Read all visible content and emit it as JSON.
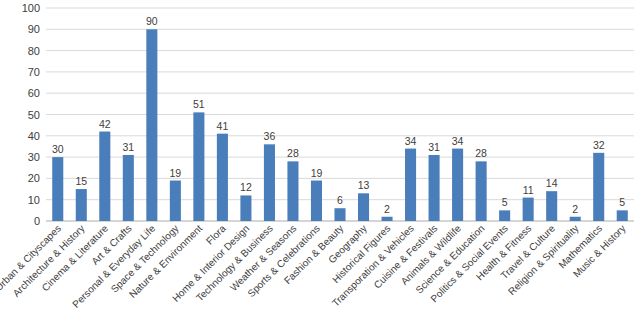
{
  "chart_data": {
    "type": "bar",
    "categories": [
      "Urban & Cityscapes",
      "Architecture & History",
      "Cinema & Literature",
      "Art & Crafts",
      "Personal & Everyday Life",
      "Space & Technology",
      "Nature & Environment",
      "Flora",
      "Home & Interior Design",
      "Technology & Business",
      "Weather & Seasons",
      "Sports & Celebrations",
      "Fashion & Beauty",
      "Geography",
      "Historical Figures",
      "Transporation & Vehicles",
      "Cuisine & Festivals",
      "Animals & Wildlife",
      "Science & Education",
      "Politics & Social Events",
      "Health & Fitness",
      "Travel & Culture",
      "Religion & Spirituality",
      "Mathematics",
      "Music & History"
    ],
    "values": [
      30,
      15,
      42,
      31,
      90,
      19,
      51,
      41,
      12,
      36,
      28,
      19,
      6,
      13,
      2,
      34,
      31,
      34,
      28,
      5,
      11,
      14,
      2,
      32,
      5
    ],
    "color": "#4a7ebb",
    "ylim": [
      0,
      100
    ],
    "yticks": [
      0,
      10,
      20,
      30,
      40,
      50,
      60,
      70,
      80,
      90,
      100
    ],
    "grid": true,
    "data_labels": true
  }
}
